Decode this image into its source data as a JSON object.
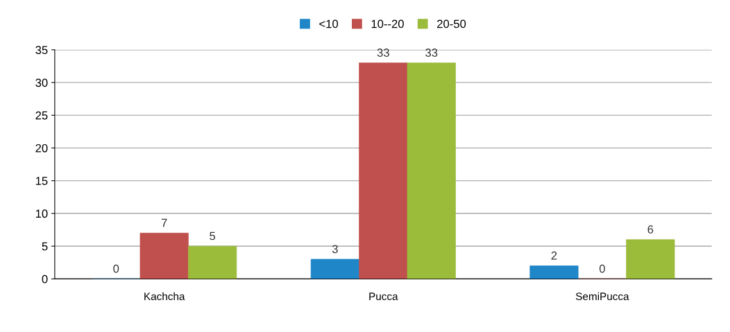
{
  "chart_data": {
    "type": "bar",
    "categories": [
      "Kachcha",
      "Pucca",
      "SemiPucca"
    ],
    "series": [
      {
        "name": "<10",
        "color": "#1f86c8",
        "values": [
          0,
          3,
          2
        ]
      },
      {
        "name": "10--20",
        "color": "#c0504d",
        "values": [
          7,
          33,
          0
        ]
      },
      {
        "name": "20-50",
        "color": "#9bbb3b",
        "values": [
          5,
          33,
          6
        ]
      }
    ],
    "ylim": [
      0,
      35
    ],
    "yticks": [
      0,
      5,
      10,
      15,
      20,
      25,
      30,
      35
    ],
    "grid": "y",
    "legend": "top",
    "data_labels": true
  }
}
